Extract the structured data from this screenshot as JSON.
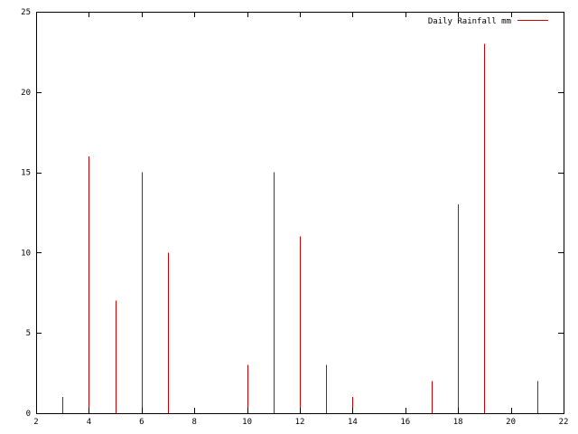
{
  "chart_data": {
    "type": "bar",
    "style": "impulses",
    "title": "",
    "xlabel": "",
    "ylabel": "",
    "xlim": [
      2,
      22
    ],
    "ylim": [
      0,
      25
    ],
    "x_ticks": [
      2,
      4,
      6,
      8,
      10,
      12,
      14,
      16,
      18,
      20,
      22
    ],
    "y_ticks": [
      0,
      5,
      10,
      15,
      20,
      25
    ],
    "grid": false,
    "legend_position": "top-right",
    "series": [
      {
        "name": "Daily Rainfall mm",
        "color": "#cc0000",
        "x": [
          3,
          4,
          5,
          6,
          7,
          10,
          11,
          12,
          13,
          14,
          17,
          18,
          19,
          21
        ],
        "values": [
          1,
          16,
          7,
          15,
          10,
          3,
          15,
          11,
          3,
          1,
          2,
          13,
          23,
          2
        ]
      }
    ]
  }
}
